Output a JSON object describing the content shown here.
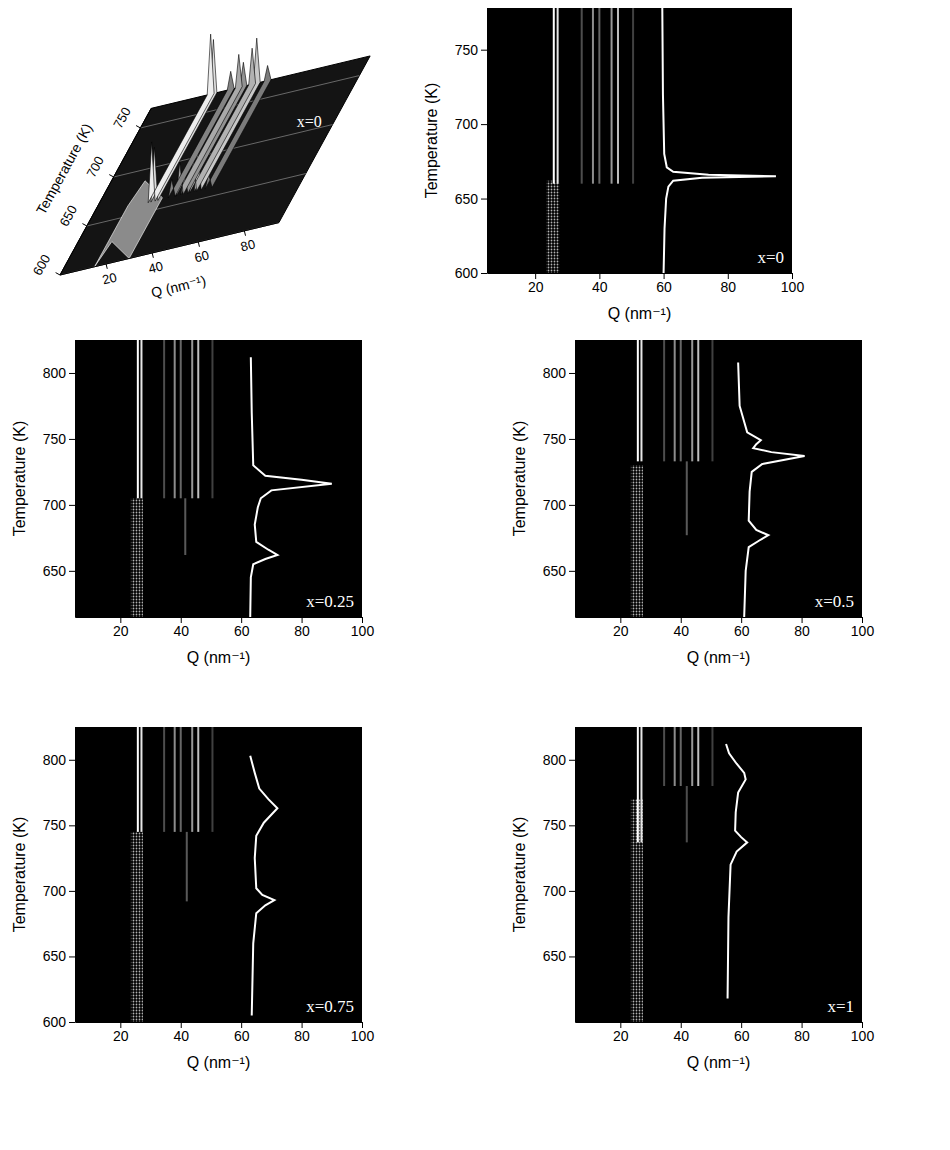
{
  "chart_data": [
    {
      "type": "waterfall_3d",
      "label": "x=0",
      "xlabel": "Q (nm⁻¹)",
      "ylabel": "Temperature (K)",
      "xlim": [
        0,
        95
      ],
      "xticks": [
        20,
        40,
        60,
        80
      ],
      "ylim": [
        600,
        770
      ],
      "yticks": [
        600,
        650,
        700,
        750
      ],
      "zlim": [
        0,
        1
      ],
      "halo": {
        "q_from": 15,
        "q_to": 30,
        "t_to": 662,
        "intensity": 0.35
      },
      "peaks": {
        "q": [
          25.8,
          27.0,
          34.5,
          38.0,
          40.0,
          43.8,
          45.8,
          50.5
        ],
        "t_from": [
          660,
          660,
          660,
          660,
          660,
          660,
          660,
          660
        ],
        "t_to": [
          770,
          770,
          770,
          770,
          770,
          770,
          770,
          770
        ],
        "intensity": [
          1.0,
          0.9,
          0.3,
          0.55,
          0.4,
          0.6,
          0.75,
          0.25
        ]
      }
    },
    {
      "type": "diffraction_map",
      "label": "x=0",
      "xlabel": "Q (nm⁻¹)",
      "ylabel": "Temperature (K)",
      "xlim": [
        5,
        100
      ],
      "xticks": [
        20,
        40,
        60,
        80,
        100
      ],
      "ylim": [
        600,
        778
      ],
      "yticks": [
        600,
        650,
        700,
        750
      ],
      "zlim": [
        0,
        1
      ],
      "halo": {
        "q_from": 23.5,
        "q_to": 27.5,
        "t_to": 662,
        "intensity": 0.8
      },
      "peaks": {
        "q": [
          25.8,
          27.0,
          34.5,
          38.0,
          40.0,
          43.8,
          45.8,
          50.5
        ],
        "t_from": [
          660,
          660,
          660,
          660,
          660,
          660,
          660,
          660
        ],
        "t_to": [
          778,
          778,
          778,
          778,
          778,
          778,
          778,
          778
        ],
        "intensity": [
          1.0,
          0.9,
          0.3,
          0.55,
          0.4,
          0.6,
          0.75,
          0.25
        ]
      },
      "curve": {
        "q": [
          60,
          60.3,
          60.8,
          61.5,
          63,
          72,
          95,
          74,
          63,
          61,
          60.2,
          59.8,
          59.6
        ],
        "t": [
          600,
          630,
          650,
          658,
          662,
          664,
          665,
          666,
          668,
          671,
          680,
          720,
          778
        ]
      }
    },
    {
      "type": "diffraction_map",
      "label": "x=0.25",
      "xlabel": "Q (nm⁻¹)",
      "ylabel": "Temperature (K)",
      "xlim": [
        5,
        100
      ],
      "xticks": [
        20,
        40,
        60,
        80,
        100
      ],
      "ylim": [
        615,
        825
      ],
      "yticks": [
        650,
        700,
        750,
        800
      ],
      "zlim": [
        0,
        1
      ],
      "halo": {
        "q_from": 23.5,
        "q_to": 27.5,
        "t_to": 705,
        "intensity": 0.8
      },
      "peaks": {
        "q": [
          25.8,
          27.0,
          34.5,
          38.0,
          40.0,
          43.8,
          45.8,
          50.5,
          41.5
        ],
        "t_from": [
          705,
          705,
          705,
          705,
          705,
          705,
          705,
          705,
          662
        ],
        "t_to": [
          825,
          825,
          825,
          825,
          825,
          825,
          825,
          825,
          705
        ],
        "intensity": [
          1.0,
          0.9,
          0.3,
          0.55,
          0.4,
          0.6,
          0.75,
          0.25,
          0.35
        ]
      },
      "curve": {
        "q": [
          63,
          63.2,
          64,
          68,
          72,
          69,
          65,
          64.5,
          65.5,
          66.5,
          70,
          90,
          80,
          68,
          64,
          63.5,
          63.2
        ],
        "t": [
          615,
          645,
          655,
          659,
          662,
          666,
          672,
          685,
          698,
          705,
          711,
          716,
          719,
          722,
          730,
          770,
          812
        ]
      }
    },
    {
      "type": "diffraction_map",
      "label": "x=0.5",
      "xlabel": "Q (nm⁻¹)",
      "ylabel": "Temperature (K)",
      "xlim": [
        5,
        100
      ],
      "xticks": [
        20,
        40,
        60,
        80,
        100
      ],
      "ylim": [
        615,
        825
      ],
      "yticks": [
        650,
        700,
        750,
        800
      ],
      "zlim": [
        0,
        1
      ],
      "halo": {
        "q_from": 23.5,
        "q_to": 27.5,
        "t_to": 730,
        "intensity": 0.8
      },
      "peaks": {
        "q": [
          25.8,
          27.0,
          34.5,
          38.0,
          40.0,
          43.8,
          45.8,
          50.5,
          42.0
        ],
        "t_from": [
          733,
          733,
          733,
          733,
          733,
          733,
          733,
          733,
          677
        ],
        "t_to": [
          825,
          825,
          825,
          825,
          825,
          825,
          825,
          825,
          733
        ],
        "intensity": [
          1.0,
          0.9,
          0.3,
          0.55,
          0.4,
          0.6,
          0.75,
          0.25,
          0.35
        ]
      },
      "curve": {
        "q": [
          61,
          61.5,
          62.5,
          66,
          69,
          65,
          62.5,
          62.8,
          63.5,
          67,
          81,
          70,
          64,
          65,
          66.5,
          62,
          59.5,
          59
        ],
        "t": [
          615,
          650,
          668,
          673,
          677,
          681,
          688,
          710,
          725,
          731,
          737,
          740,
          743,
          746,
          749,
          755,
          775,
          808
        ]
      }
    },
    {
      "type": "diffraction_map",
      "label": "x=0.75",
      "xlabel": "Q (nm⁻¹)",
      "ylabel": "Temperature (K)",
      "xlim": [
        5,
        100
      ],
      "xticks": [
        20,
        40,
        60,
        80,
        100
      ],
      "ylim": [
        600,
        825
      ],
      "yticks": [
        600,
        650,
        700,
        750,
        800
      ],
      "zlim": [
        0,
        1
      ],
      "halo": {
        "q_from": 23.5,
        "q_to": 27.5,
        "t_to": 745,
        "intensity": 0.8
      },
      "peaks": {
        "q": [
          25.8,
          27.0,
          34.5,
          38.0,
          40.0,
          43.8,
          45.8,
          50.5,
          42.0
        ],
        "t_from": [
          745,
          745,
          745,
          745,
          745,
          745,
          745,
          745,
          692
        ],
        "t_to": [
          825,
          825,
          825,
          825,
          825,
          825,
          825,
          825,
          745
        ],
        "intensity": [
          1.0,
          0.9,
          0.3,
          0.55,
          0.4,
          0.6,
          0.75,
          0.25,
          0.35
        ]
      },
      "curve": {
        "q": [
          63.5,
          64,
          65,
          68,
          71,
          67,
          65,
          64.5,
          65,
          67.5,
          72,
          69,
          66,
          64.5,
          63
        ],
        "t": [
          605,
          660,
          683,
          689,
          693,
          697,
          702,
          725,
          742,
          752,
          763,
          770,
          778,
          790,
          803
        ]
      }
    },
    {
      "type": "diffraction_map",
      "label": "x=1",
      "xlabel": "Q (nm⁻¹)",
      "ylabel": "Temperature (K)",
      "xlim": [
        5,
        100
      ],
      "xticks": [
        20,
        40,
        60,
        80,
        100
      ],
      "ylim": [
        600,
        825
      ],
      "yticks": [
        650,
        700,
        750,
        800
      ],
      "zlim": [
        0,
        1
      ],
      "halo": {
        "q_from": 23.5,
        "q_to": 27.5,
        "t_to": 770,
        "intensity": 0.8
      },
      "peaks": {
        "q": [
          25.8,
          27.0,
          34.5,
          38.0,
          40.0,
          43.8,
          45.8,
          50.5,
          42.0
        ],
        "t_from": [
          737,
          737,
          780,
          780,
          780,
          780,
          780,
          780,
          737
        ],
        "t_to": [
          825,
          825,
          825,
          825,
          825,
          825,
          825,
          825,
          780
        ],
        "intensity": [
          1.0,
          0.9,
          0.3,
          0.55,
          0.4,
          0.6,
          0.75,
          0.25,
          0.3
        ]
      },
      "curve": {
        "q": [
          55.5,
          55.8,
          56.5,
          58.5,
          62,
          60,
          58,
          58.2,
          59,
          61.5,
          61,
          58.5,
          56,
          55
        ],
        "t": [
          618,
          680,
          720,
          730,
          737,
          741,
          746,
          760,
          775,
          785,
          790,
          797,
          805,
          812
        ]
      }
    }
  ]
}
